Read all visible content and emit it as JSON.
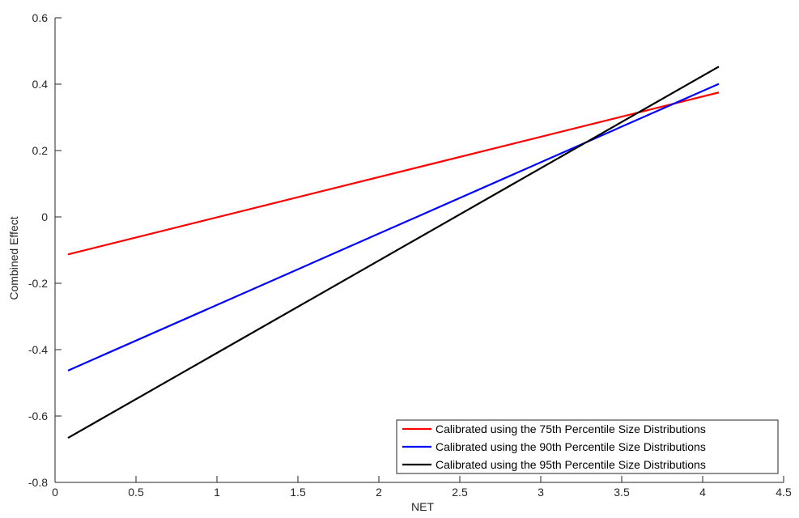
{
  "chart_data": {
    "type": "line",
    "title": "",
    "xlabel": "NET",
    "ylabel": "Combined Effect",
    "xlim": [
      0,
      4.5
    ],
    "ylim": [
      -0.8,
      0.6
    ],
    "xticks": [
      0,
      0.5,
      1,
      1.5,
      2,
      2.5,
      3,
      3.5,
      4,
      4.5
    ],
    "yticks": [
      -0.8,
      -0.6,
      -0.4,
      -0.2,
      0,
      0.2,
      0.4,
      0.6
    ],
    "xtick_labels": [
      "0",
      "0.5",
      "1",
      "1.5",
      "2",
      "2.5",
      "3",
      "3.5",
      "4",
      "4.5"
    ],
    "ytick_labels": [
      "-0.8",
      "-0.6",
      "-0.4",
      "-0.2",
      "0",
      "0.2",
      "0.4",
      "0.6"
    ],
    "grid": false,
    "legend_position": "bottom-right",
    "series": [
      {
        "name": "Calibrated using the 75th Percentile Size Distributions",
        "color": "#ff0000",
        "x": [
          0.08,
          4.1
        ],
        "y": [
          -0.113,
          0.375
        ]
      },
      {
        "name": "Calibrated using the 90th Percentile Size Distributions",
        "color": "#0000ff",
        "x": [
          0.08,
          4.1
        ],
        "y": [
          -0.463,
          0.401
        ]
      },
      {
        "name": "Calibrated using the 95th Percentile Size Distributions",
        "color": "#000000",
        "x": [
          0.08,
          4.1
        ],
        "y": [
          -0.666,
          0.453
        ]
      }
    ]
  }
}
